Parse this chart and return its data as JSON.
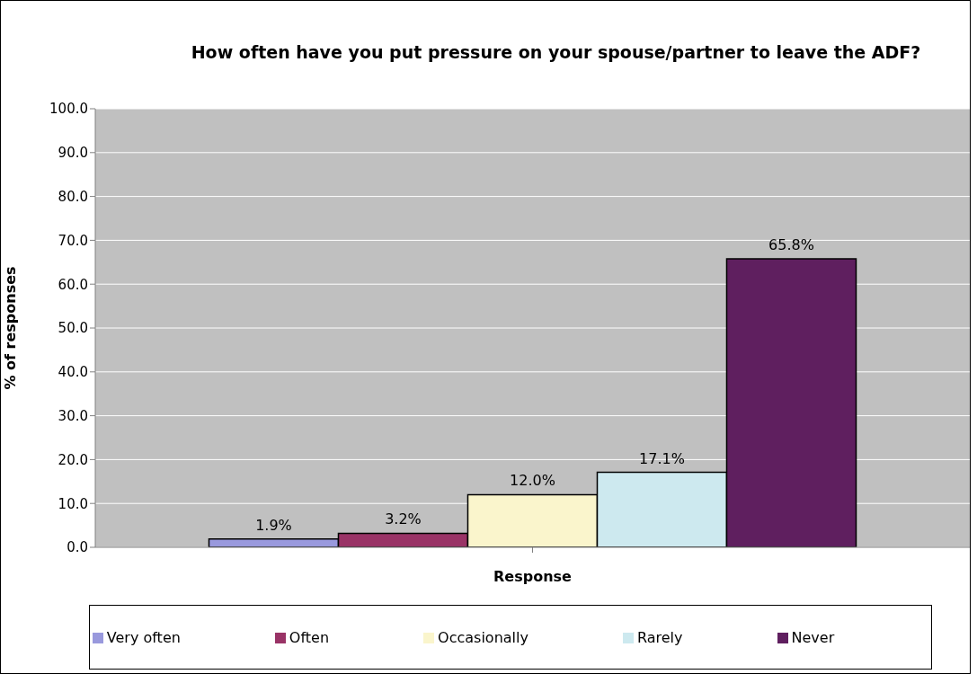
{
  "chart_data": {
    "type": "bar",
    "title": "How often have you put pressure on your spouse/partner to leave the ADF?",
    "xlabel": "Response",
    "ylabel": "% of responses",
    "categories": [
      null
    ],
    "series": [
      {
        "name": "Very often",
        "color": "#9999dd",
        "values": [
          1.9
        ],
        "value_labels": [
          "1.9%"
        ]
      },
      {
        "name": "Often",
        "color": "#993366",
        "values": [
          3.2
        ],
        "value_labels": [
          "3.2%"
        ]
      },
      {
        "name": "Occasionally",
        "color": "#faf5cc",
        "values": [
          12.0
        ],
        "value_labels": [
          "12.0%"
        ]
      },
      {
        "name": "Rarely",
        "color": "#cde9ef",
        "values": [
          17.1
        ],
        "value_labels": [
          "17.1%"
        ]
      },
      {
        "name": "Never",
        "color": "#5f1f5f",
        "values": [
          65.8
        ],
        "value_labels": [
          "65.8%"
        ]
      }
    ],
    "ylim": [
      0,
      100
    ],
    "yticks": [
      {
        "value": 0,
        "label": "0.0"
      },
      {
        "value": 10,
        "label": "10.0"
      },
      {
        "value": 20,
        "label": "20.0"
      },
      {
        "value": 30,
        "label": "30.0"
      },
      {
        "value": 40,
        "label": "40.0"
      },
      {
        "value": 50,
        "label": "50.0"
      },
      {
        "value": 60,
        "label": "60.0"
      },
      {
        "value": 70,
        "label": "70.0"
      },
      {
        "value": 80,
        "label": "80.0"
      },
      {
        "value": 90,
        "label": "90.0"
      },
      {
        "value": 100,
        "label": "100.0"
      }
    ],
    "grid": "y",
    "legend": "bottom"
  }
}
